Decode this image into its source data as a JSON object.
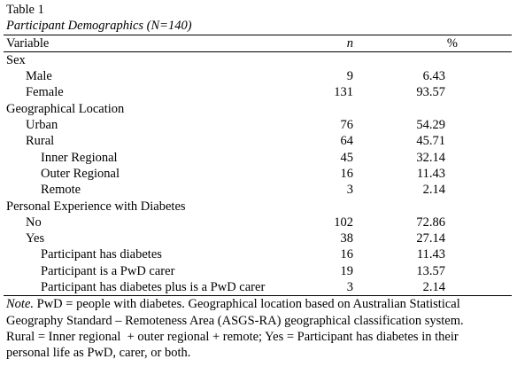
{
  "header": {
    "label": "Table 1",
    "title": "Participant Demographics (N=140)"
  },
  "table": {
    "columns": [
      "Variable",
      "n",
      "%"
    ],
    "groups": [
      {
        "label": "Sex",
        "rows": [
          {
            "label": "Male",
            "n": 9,
            "pct": 6.43
          },
          {
            "label": "Female",
            "n": 131,
            "pct": 93.57
          }
        ]
      },
      {
        "label": "Geographical Location",
        "rows": [
          {
            "label": "Urban",
            "n": 76,
            "pct": 54.29
          },
          {
            "label": "Rural",
            "n": 64,
            "pct": 45.71,
            "rows": [
              {
                "label": "Inner Regional",
                "n": 45,
                "pct": 32.14
              },
              {
                "label": "Outer Regional",
                "n": 16,
                "pct": 11.43
              },
              {
                "label": "Remote",
                "n": 3,
                "pct": 2.14
              }
            ]
          }
        ]
      },
      {
        "label": "Personal Experience with Diabetes",
        "rows": [
          {
            "label": "No",
            "n": 102,
            "pct": 72.86
          },
          {
            "label": "Yes",
            "n": 38,
            "pct": 27.14,
            "rows": [
              {
                "label": "Participant has diabetes",
                "n": 16,
                "pct": 11.43
              },
              {
                "label": "Participant is a PwD carer",
                "n": 19,
                "pct": 13.57
              },
              {
                "label": "Participant has diabetes plus is a PwD carer",
                "n": 3,
                "pct": 2.14
              }
            ]
          }
        ]
      }
    ]
  },
  "note": {
    "label": "Note.",
    "lines": [
      " PwD = people with diabetes. Geographical location based on Australian Statistical",
      "Geography Standard – Remoteness Area (ASGS-RA) geographical classification system.",
      "Rural = Inner regional  + outer regional + remote; Yes = Participant has diabetes in their",
      "personal life as PwD, carer, or both."
    ]
  }
}
